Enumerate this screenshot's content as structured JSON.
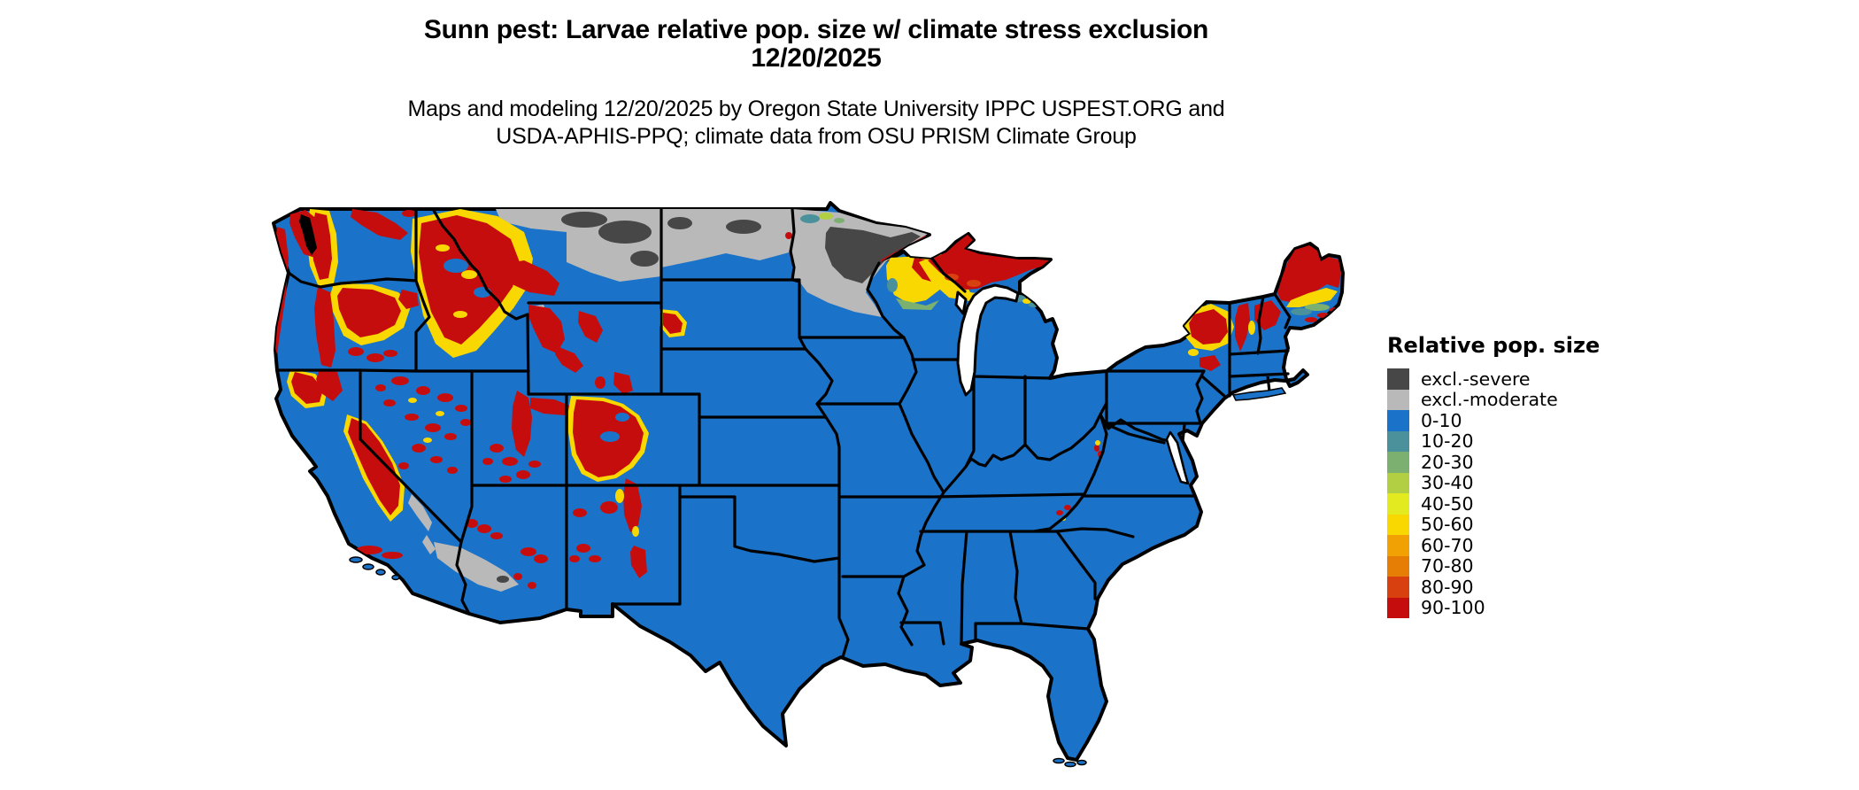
{
  "header": {
    "title": "Sunn pest: Larvae relative pop. size w/ climate stress exclusion",
    "date": "12/20/2025",
    "subtitle1": "Maps and modeling 12/20/2025 by Oregon State University IPPC USPEST.ORG and",
    "subtitle2": "USDA-APHIS-PPQ; climate data from OSU PRISM Climate Group"
  },
  "legend": {
    "title": "Relative pop. size",
    "items": [
      {
        "label": "excl.-severe",
        "color": "exs"
      },
      {
        "label": "excl.-moderate",
        "color": "exm"
      },
      {
        "label": "0-10",
        "color": "c0"
      },
      {
        "label": "10-20",
        "color": "c10"
      },
      {
        "label": "20-30",
        "color": "c20"
      },
      {
        "label": "30-40",
        "color": "c30"
      },
      {
        "label": "40-50",
        "color": "c40"
      },
      {
        "label": "50-60",
        "color": "c50"
      },
      {
        "label": "60-70",
        "color": "c60"
      },
      {
        "label": "70-80",
        "color": "c70"
      },
      {
        "label": "80-90",
        "color": "c80"
      },
      {
        "label": "90-100",
        "color": "c90"
      }
    ]
  },
  "palette": {
    "exs": "#474747",
    "exm": "#b9b9b9",
    "c0": "#1a73c8",
    "c10": "#4a919b",
    "c20": "#7bb071",
    "c30": "#b2cf44",
    "c40": "#e3ea1f",
    "c50": "#f8d800",
    "c60": "#f2a104",
    "c70": "#e67d05",
    "c80": "#d9400f",
    "c90": "#c60d0e"
  },
  "map": {
    "region": "Contiguous United States",
    "type": "pest risk raster with state borders"
  }
}
